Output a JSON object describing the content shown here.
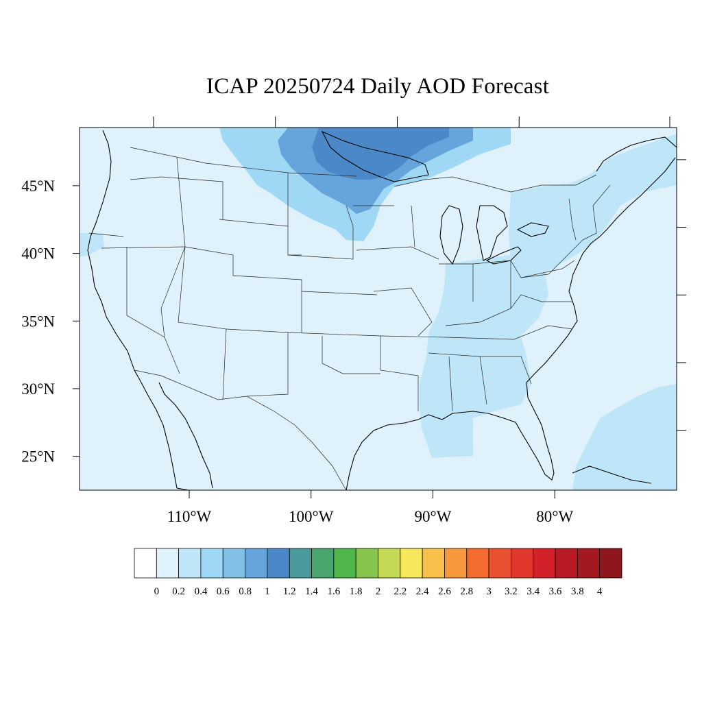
{
  "title": "ICAP 20250724 Daily AOD Forecast",
  "map": {
    "extent": {
      "lon": [
        -119.0,
        -70.0
      ],
      "lat": [
        22.5,
        49.3
      ]
    },
    "lat_ticks": [
      {
        "value": 45,
        "label": "45°N"
      },
      {
        "value": 40,
        "label": "40°N"
      },
      {
        "value": 35,
        "label": "35°N"
      },
      {
        "value": 30,
        "label": "30°N"
      },
      {
        "value": 25,
        "label": "25°N"
      }
    ],
    "lon_ticks": [
      {
        "value": -110,
        "label": "110°W"
      },
      {
        "value": -100,
        "label": "100°W"
      },
      {
        "value": -90,
        "label": "90°W"
      },
      {
        "value": -80,
        "label": "80°W"
      }
    ],
    "background_value": 0.1,
    "aod_regions": [
      {
        "name": "north-plains-smoke",
        "value": 0.5
      },
      {
        "name": "minnesota-ontario-smoke",
        "value": 0.9
      },
      {
        "name": "lake-superior-core",
        "value": 1.1
      },
      {
        "name": "southeast-haze",
        "value": 0.3
      },
      {
        "name": "northeast-haze",
        "value": 0.3
      },
      {
        "name": "atlantic-haze",
        "value": 0.3
      },
      {
        "name": "pacific-coast-haze",
        "value": 0.3
      }
    ]
  },
  "colorbar": {
    "labels": [
      "0",
      "0.2",
      "0.4",
      "0.6",
      "0.8",
      "1",
      "1.2",
      "1.4",
      "1.6",
      "1.8",
      "2",
      "2.2",
      "2.4",
      "2.6",
      "2.8",
      "3",
      "3.2",
      "3.4",
      "3.6",
      "3.8",
      "4"
    ],
    "colors": [
      "#ffffff",
      "#dff1fb",
      "#bfe6f8",
      "#9fd8f4",
      "#82c0e6",
      "#65a5db",
      "#4a88c8",
      "#4a9a9b",
      "#48a56e",
      "#4fb64a",
      "#86c44e",
      "#c6d957",
      "#f7e75b",
      "#f8c04b",
      "#f7983e",
      "#f46b30",
      "#ea5130",
      "#e0382c",
      "#d22128",
      "#b81a25",
      "#a4181f",
      "#8f161a"
    ]
  }
}
